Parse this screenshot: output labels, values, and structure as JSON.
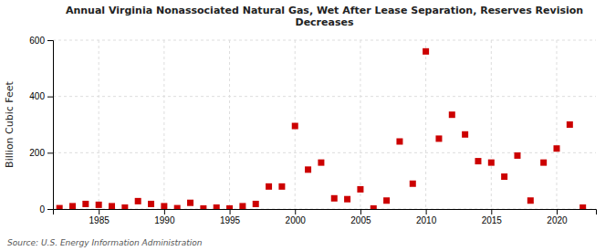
{
  "chart_data": {
    "type": "scatter",
    "title": "Annual Virginia Nonassociated Natural Gas, Wet After Lease Separation, Reserves Revision\nDecreases",
    "y_label": "Billion Cubic Feet",
    "annotations": [
      "Source: U.S. Energy Information Administration"
    ],
    "color": "#cc0000",
    "marker": "square",
    "grid": true,
    "xlim": [
      1981.5,
      2023
    ],
    "ylim": [
      0,
      600
    ],
    "xticks": [
      1985,
      1990,
      1995,
      2000,
      2005,
      2010,
      2015,
      2020
    ],
    "yticks": [
      0,
      200,
      400,
      600
    ],
    "x": [
      1982,
      1983,
      1984,
      1985,
      1986,
      1987,
      1988,
      1989,
      1990,
      1991,
      1992,
      1993,
      1994,
      1995,
      1996,
      1997,
      1998,
      1999,
      2000,
      2001,
      2002,
      2003,
      2004,
      2005,
      2006,
      2007,
      2008,
      2009,
      2010,
      2011,
      2012,
      2013,
      2014,
      2015,
      2016,
      2017,
      2018,
      2019,
      2020,
      2021,
      2022
    ],
    "values": [
      3,
      10,
      18,
      15,
      10,
      5,
      28,
      18,
      10,
      3,
      22,
      2,
      5,
      2,
      10,
      18,
      80,
      80,
      295,
      140,
      165,
      38,
      35,
      70,
      2,
      30,
      240,
      90,
      560,
      250,
      335,
      265,
      170,
      165,
      115,
      190,
      30,
      165,
      215,
      300,
      5
    ]
  }
}
